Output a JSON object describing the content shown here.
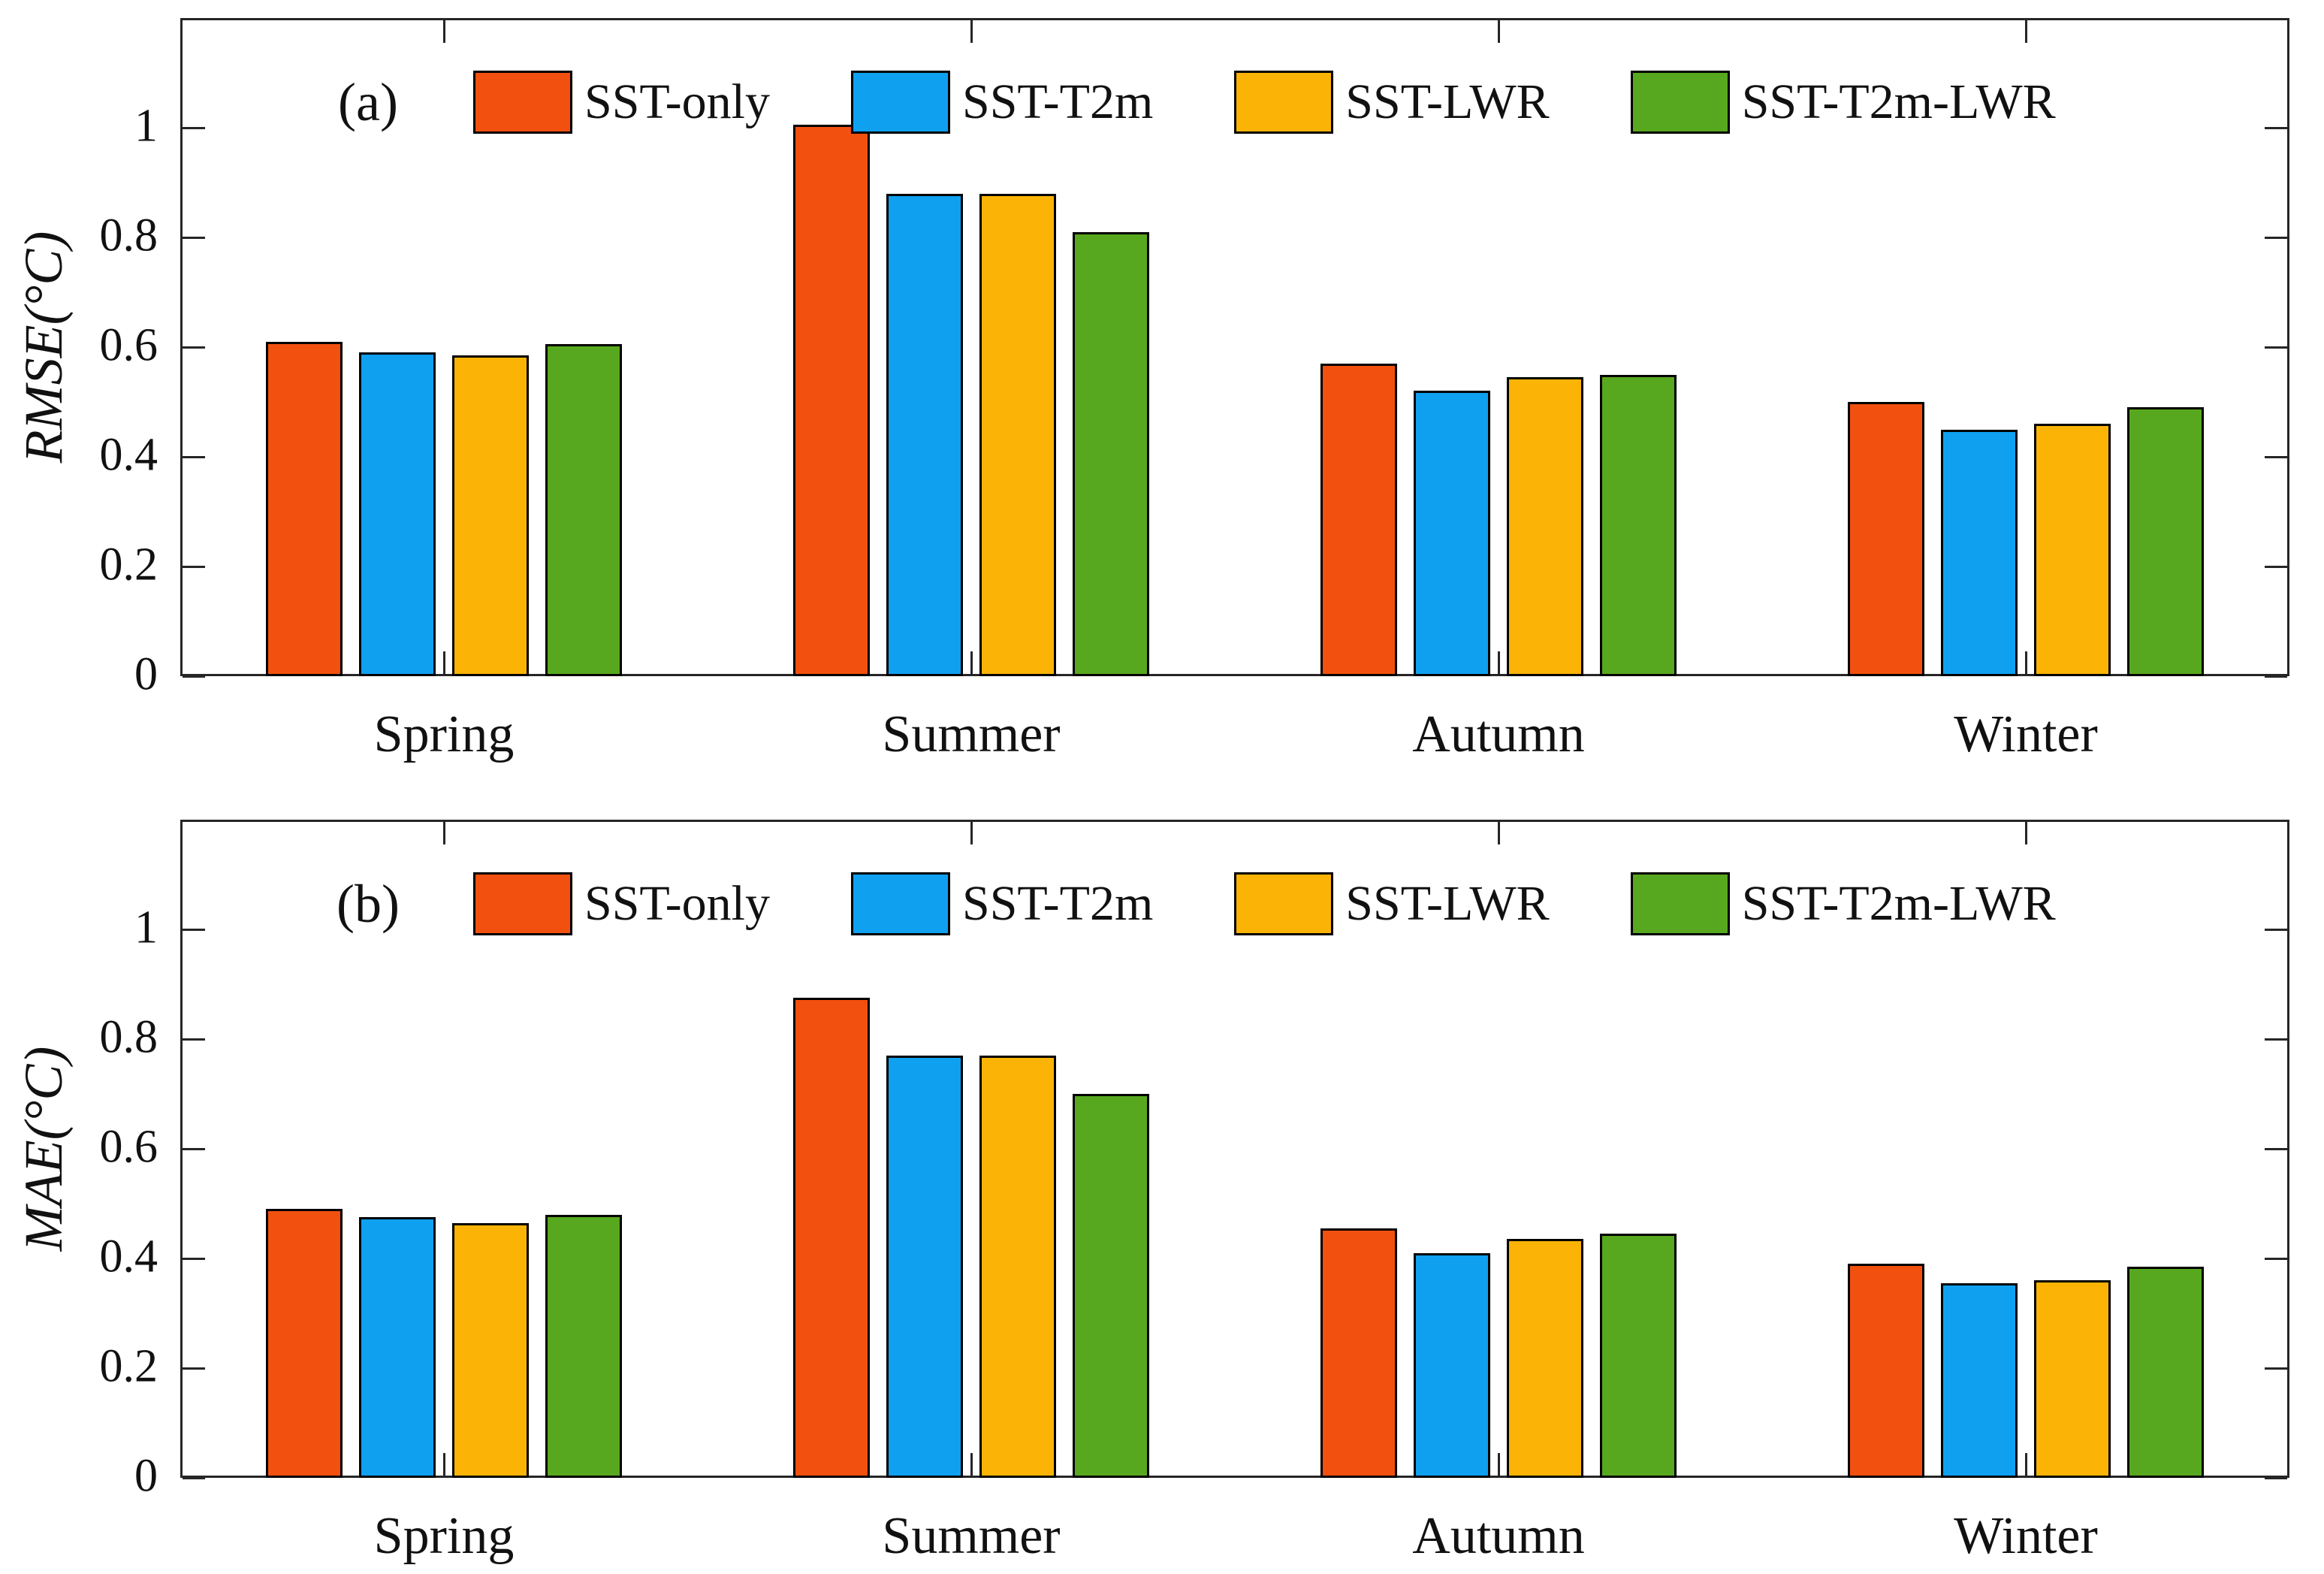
{
  "figure": {
    "background": "#FFFFFF",
    "axis_color": "#262626",
    "text_color": "#111111",
    "bar_edge_color": "#000000"
  },
  "chart_data": [
    {
      "type": "bar",
      "title": "(a)",
      "ylabel": "RMSE(°C)",
      "xlabel": "",
      "categories": [
        "Spring",
        "Summer",
        "Autumn",
        "Winter"
      ],
      "series": [
        {
          "name": "SST-only",
          "color": "#F2500F",
          "values": [
            0.61,
            1.005,
            0.57,
            0.5
          ]
        },
        {
          "name": "SST-T2m",
          "color": "#0FA0F0",
          "values": [
            0.59,
            0.88,
            0.52,
            0.45
          ]
        },
        {
          "name": "SST-LWR",
          "color": "#FBB405",
          "values": [
            0.585,
            0.88,
            0.545,
            0.46
          ]
        },
        {
          "name": "SST-T2m-LWR",
          "color": "#57A81E",
          "values": [
            0.605,
            0.81,
            0.55,
            0.49
          ]
        }
      ],
      "ylim": [
        0,
        1.2
      ],
      "yticks": [
        0,
        0.2,
        0.4,
        0.6,
        0.8,
        1
      ],
      "grid": false,
      "legend_position": "top-inside"
    },
    {
      "type": "bar",
      "title": "(b)",
      "ylabel": "MAE(°C)",
      "xlabel": "",
      "categories": [
        "Spring",
        "Summer",
        "Autumn",
        "Winter"
      ],
      "series": [
        {
          "name": "SST-only",
          "color": "#F2500F",
          "values": [
            0.49,
            0.875,
            0.455,
            0.39
          ]
        },
        {
          "name": "SST-T2m",
          "color": "#0FA0F0",
          "values": [
            0.475,
            0.77,
            0.41,
            0.355
          ]
        },
        {
          "name": "SST-LWR",
          "color": "#FBB405",
          "values": [
            0.465,
            0.77,
            0.435,
            0.36
          ]
        },
        {
          "name": "SST-T2m-LWR",
          "color": "#57A81E",
          "values": [
            0.48,
            0.7,
            0.445,
            0.385
          ]
        }
      ],
      "ylim": [
        0,
        1.2
      ],
      "yticks": [
        0,
        0.2,
        0.4,
        0.6,
        0.8,
        1
      ],
      "grid": false,
      "legend_position": "top-inside"
    }
  ]
}
